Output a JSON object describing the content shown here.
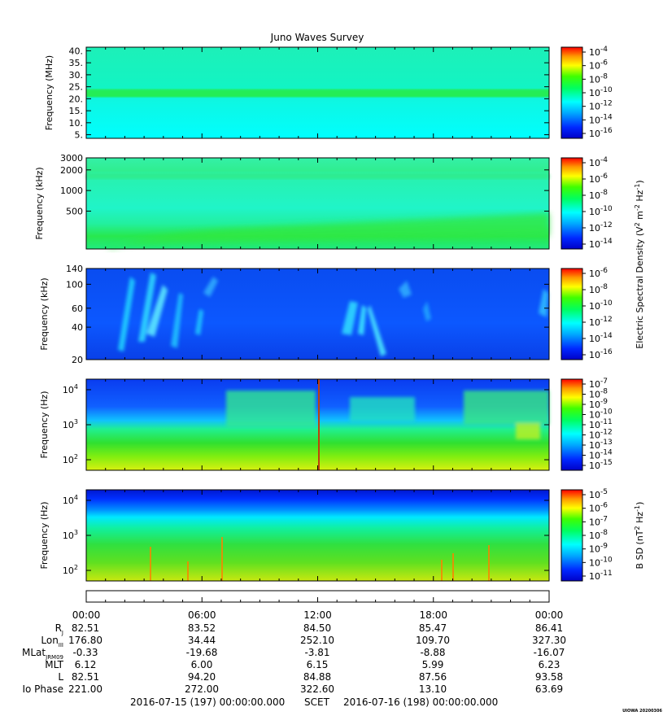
{
  "chart_data": {
    "type": "heatmap",
    "title": "Juno Waves Survey",
    "panels": [
      {
        "id": "p1",
        "ylabel": "Frequency (MHz)",
        "ytick_labels": [
          "40.",
          "35.",
          "30.",
          "25.",
          "20.",
          "15.",
          "10.",
          "5."
        ],
        "ytick_values": [
          40,
          35,
          30,
          25,
          20,
          15,
          10,
          5
        ],
        "ylim": [
          3.5,
          41.5
        ],
        "scale": "linear",
        "colorbar": {
          "labels": [
            "10",
            "10",
            "10",
            "10",
            "10",
            "10",
            "10"
          ],
          "exponents": [
            "-4",
            "-6",
            "-8",
            "-10",
            "-12",
            "-14",
            "-16"
          ]
        }
      },
      {
        "id": "p2",
        "ylabel": "Frequency (kHz)",
        "ytick_labels": [
          "3000",
          "2000",
          "1000",
          "500"
        ],
        "ytick_values": [
          3000,
          2000,
          1000,
          500
        ],
        "ylim": [
          140,
          3000
        ],
        "scale": "log",
        "colorbar": {
          "labels": [
            "10",
            "10",
            "10",
            "10",
            "10",
            "10"
          ],
          "exponents": [
            "-4",
            "-6",
            "-8",
            "-10",
            "-12",
            "-14"
          ]
        }
      },
      {
        "id": "p3",
        "ylabel": "Frequency (kHz)",
        "ytick_labels": [
          "140",
          "100",
          "60",
          "40",
          "20"
        ],
        "ytick_values": [
          140,
          100,
          60,
          40,
          20
        ],
        "ylim": [
          20,
          140
        ],
        "scale": "log",
        "colorbar": {
          "labels": [
            "10",
            "10",
            "10",
            "10",
            "10",
            "10"
          ],
          "exponents": [
            "-6",
            "-8",
            "-10",
            "-12",
            "-14",
            "-16"
          ]
        }
      },
      {
        "id": "p4",
        "ylabel": "Frequency (Hz)",
        "ytick_labels": [
          "10",
          "10",
          "10"
        ],
        "ytick_exponents": [
          "4",
          "3",
          "2"
        ],
        "ytick_values": [
          10000,
          1000,
          100
        ],
        "ylim": [
          50,
          20000
        ],
        "scale": "log",
        "colorbar": {
          "labels": [
            "10",
            "10",
            "10",
            "10",
            "10",
            "10",
            "10",
            "10",
            "10"
          ],
          "exponents": [
            "-7",
            "-8",
            "-9",
            "-10",
            "-11",
            "-12",
            "-13",
            "-14",
            "-15"
          ]
        }
      },
      {
        "id": "p5",
        "ylabel": "Frequency (Hz)",
        "ytick_labels": [
          "10",
          "10",
          "10"
        ],
        "ytick_exponents": [
          "4",
          "3",
          "2"
        ],
        "ytick_values": [
          10000,
          1000,
          100
        ],
        "ylim": [
          50,
          20000
        ],
        "scale": "log",
        "colorbar": {
          "labels": [
            "10",
            "10",
            "10",
            "10",
            "10",
            "10",
            "10"
          ],
          "exponents": [
            "-5",
            "-6",
            "-7",
            "-8",
            "-9",
            "-10",
            "-11"
          ]
        }
      }
    ],
    "colorbar_title_e": "Electric Spectral Density (V",
    "colorbar_title_e_sup1": "2",
    "colorbar_title_e_mid": " m",
    "colorbar_title_e_sup2": "-2",
    "colorbar_title_e_mid2": " Hz",
    "colorbar_title_e_sup3": "-1",
    "colorbar_title_e_end": ")",
    "colorbar_title_b": "B SD (nT",
    "colorbar_title_b_sup1": "2",
    "colorbar_title_b_mid": " Hz",
    "colorbar_title_b_sup2": "-1",
    "colorbar_title_b_end": ")",
    "x_tick_labels": [
      "00:00",
      "06:00",
      "12:00",
      "18:00",
      "00:00"
    ],
    "ephemeris": [
      {
        "label": "R",
        "sub": "J",
        "values": [
          "82.51",
          "83.52",
          "84.50",
          "85.47",
          "86.41"
        ]
      },
      {
        "label": "Lon",
        "sub": "III",
        "values": [
          "176.80",
          "34.44",
          "252.10",
          "109.70",
          "327.30"
        ]
      },
      {
        "label": "MLat",
        "sub": "JRM09",
        "values": [
          "-0.33",
          "-19.68",
          "-3.81",
          "-8.88",
          "-16.07"
        ]
      },
      {
        "label": "MLT",
        "sub": "",
        "values": [
          "6.12",
          "6.00",
          "6.15",
          "5.99",
          "6.23"
        ]
      },
      {
        "label": "L",
        "sub": "",
        "values": [
          "82.51",
          "94.20",
          "84.88",
          "87.56",
          "93.58"
        ]
      },
      {
        "label": "Io Phase",
        "sub": "",
        "values": [
          "221.00",
          "272.00",
          "322.60",
          "13.10",
          "63.69"
        ]
      }
    ],
    "time_range_start": "2016-07-15 (197) 00:00:00.000",
    "time_scale_label": "SCET",
    "time_range_end": "2016-07-16 (198) 00:00:00.000",
    "corner_stamp": "UIOWA 20200306"
  }
}
